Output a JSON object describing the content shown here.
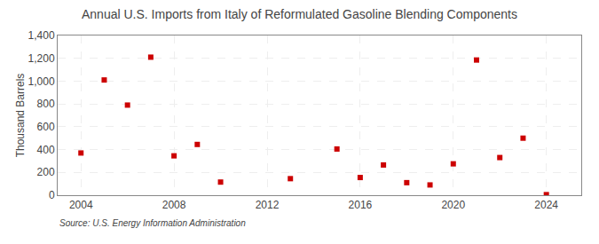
{
  "chart_data": {
    "type": "scatter",
    "title": "Annual U.S. Imports from Italy of Reformulated Gasoline Blending Components",
    "ylabel": "Thousand Barrels",
    "annotations": [
      "Source: U.S. Energy Information Administration"
    ],
    "x": [
      2004,
      2005,
      2006,
      2007,
      2008,
      2009,
      2010,
      2013,
      2015,
      2016,
      2017,
      2018,
      2019,
      2020,
      2021,
      2022,
      2023,
      2024
    ],
    "values": [
      370,
      1010,
      790,
      1210,
      345,
      445,
      115,
      145,
      405,
      155,
      265,
      110,
      90,
      275,
      1185,
      330,
      500,
      5
    ],
    "color": "#cc0000",
    "marker": "square",
    "xlim": [
      2003.0,
      2025.5
    ],
    "xticks": [
      2004,
      2008,
      2012,
      2016,
      2020,
      2024
    ],
    "ylim": [
      0,
      1400
    ],
    "yticks": [
      0,
      200,
      400,
      600,
      800,
      {
        "value": 1000,
        "label": "1,000"
      },
      {
        "value": 1200,
        "label": "1,200"
      },
      {
        "value": 1400,
        "label": "1,400"
      }
    ],
    "grid": true
  }
}
